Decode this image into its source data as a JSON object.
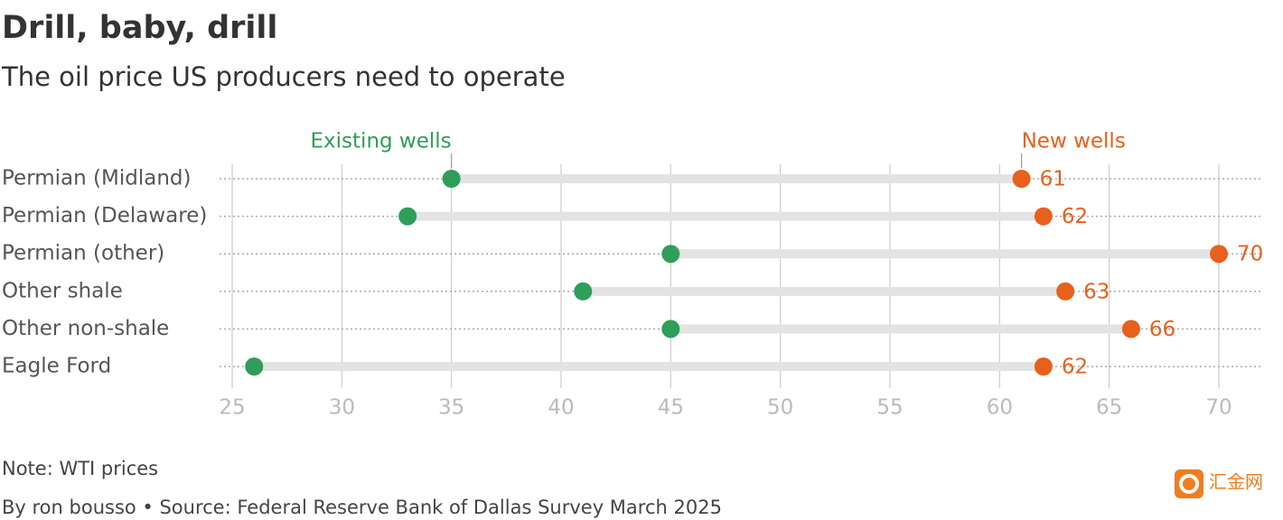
{
  "chart_data": {
    "type": "dumbbell",
    "title": "Drill, baby, drill",
    "subtitle": "The oil price US producers need to operate",
    "categories": [
      "Permian (Midland)",
      "Permian (Delaware)",
      "Permian (other)",
      "Other shale",
      "Other non-shale",
      "Eagle Ford"
    ],
    "series": [
      {
        "name": "Existing wells",
        "color": "#2e9e58",
        "values": [
          35,
          33,
          45,
          41,
          45,
          26
        ]
      },
      {
        "name": "New wells",
        "color": "#e8601c",
        "values": [
          61,
          62,
          70,
          63,
          66,
          62
        ]
      }
    ],
    "xlim": [
      25,
      70
    ],
    "xticks": [
      25,
      30,
      35,
      40,
      45,
      50,
      55,
      60,
      65,
      70
    ],
    "grid": true,
    "note": "Note: WTI prices",
    "source": "By ron bousso • Source: Federal Reserve Bank of Dallas Survey March 2025",
    "watermark": "汇金网"
  }
}
